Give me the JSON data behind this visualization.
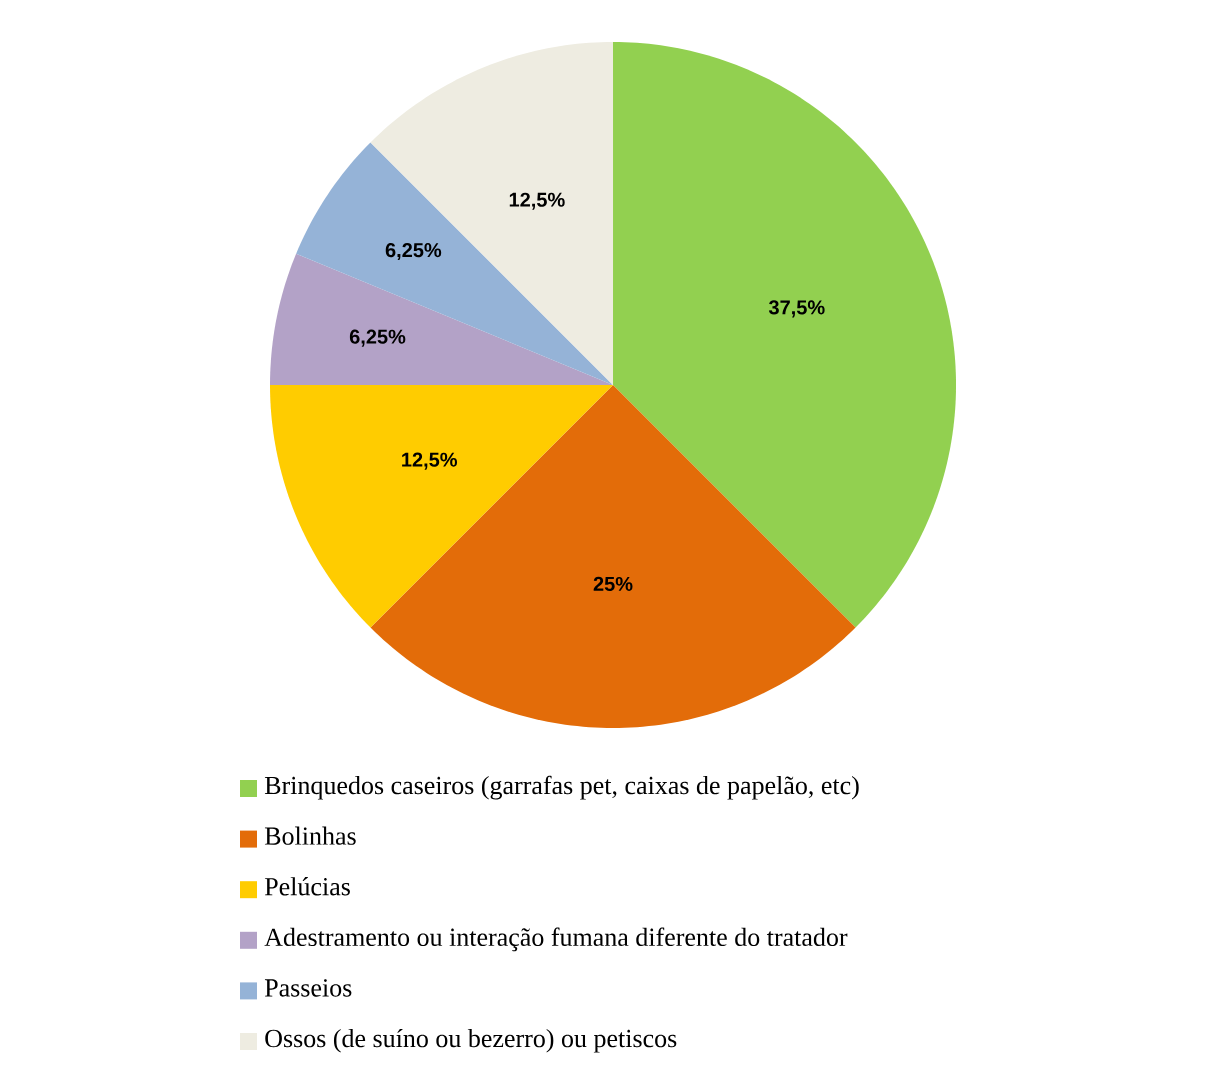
{
  "chart_data": {
    "type": "pie",
    "categories": [
      "Brinquedos caseiros (garrafas pet, caixas de papelão, etc)",
      "Bolinhas",
      "Pelúcias",
      "Adestramento ou interação fumana diferente do tratador",
      "Passeios",
      "Ossos (de suíno ou bezerro) ou petiscos"
    ],
    "values": [
      37.5,
      25,
      12.5,
      6.25,
      6.25,
      12.5
    ],
    "value_labels": [
      "37,5%",
      "25%",
      "12,5%",
      "6,25%",
      "6,25%",
      "12,5%"
    ],
    "colors": [
      "#92d050",
      "#e36c09",
      "#ffcc00",
      "#b3a2c7",
      "#95b3d7",
      "#eeece1"
    ],
    "legend": "bottom"
  }
}
